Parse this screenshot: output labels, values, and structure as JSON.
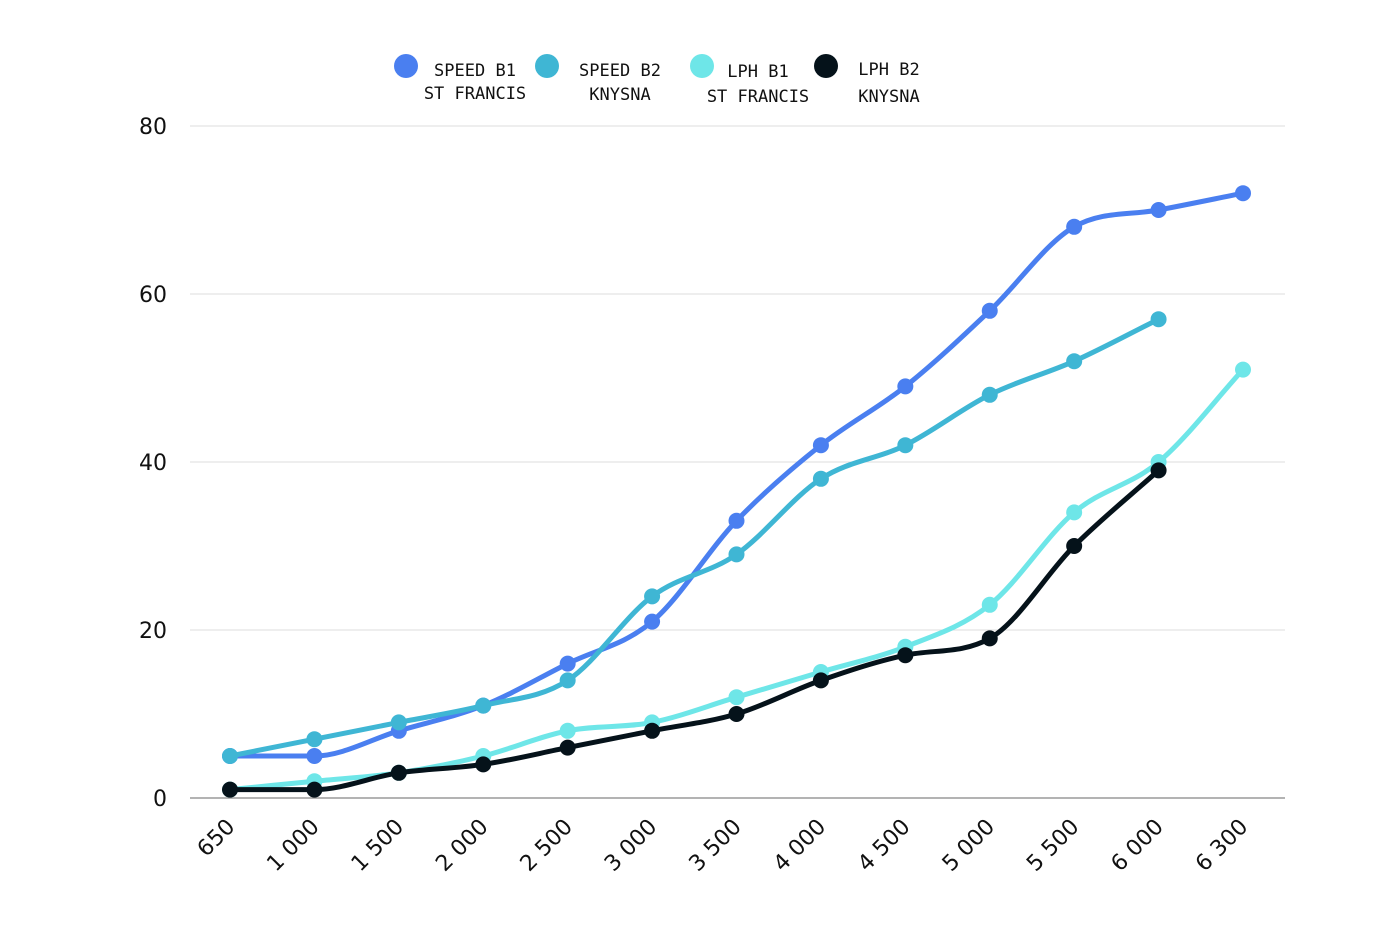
{
  "chart_data": {
    "type": "line",
    "title": "",
    "xlabel": "",
    "ylabel": "",
    "categories": [
      "650",
      "1 000",
      "1 500",
      "2 000",
      "2 500",
      "3 000",
      "3 500",
      "4 000",
      "4 500",
      "5 000",
      "5 500",
      "6 000",
      "6 300"
    ],
    "y_ticks": [
      "0",
      "20",
      "40",
      "60",
      "80"
    ],
    "ylim": [
      0,
      80
    ],
    "grid": true,
    "legend_position": "top-center",
    "series": [
      {
        "name_line1": "SPEED B1",
        "name_line2": "ST FRANCIS",
        "color": "#4a7ff0",
        "values": [
          5,
          5,
          8,
          11,
          16,
          21,
          33,
          42,
          49,
          58,
          68,
          70,
          72
        ]
      },
      {
        "name_line1": "SPEED B2",
        "name_line2": "KNYSNA",
        "color": "#3fb6d4",
        "values": [
          5,
          7,
          9,
          11,
          14,
          24,
          29,
          38,
          42,
          48,
          52,
          57,
          null
        ]
      },
      {
        "name_line1": "LPH B1",
        "name_line2": "ST FRANCIS",
        "color": "#6ee6e8",
        "values": [
          1,
          2,
          3,
          5,
          8,
          9,
          12,
          15,
          18,
          23,
          34,
          40,
          51
        ]
      },
      {
        "name_line1": "LPH B2",
        "name_line2": "KNYSNA",
        "color": "#05121a",
        "values": [
          1,
          1,
          3,
          4,
          6,
          8,
          10,
          14,
          17,
          19,
          30,
          39,
          null
        ]
      }
    ]
  }
}
